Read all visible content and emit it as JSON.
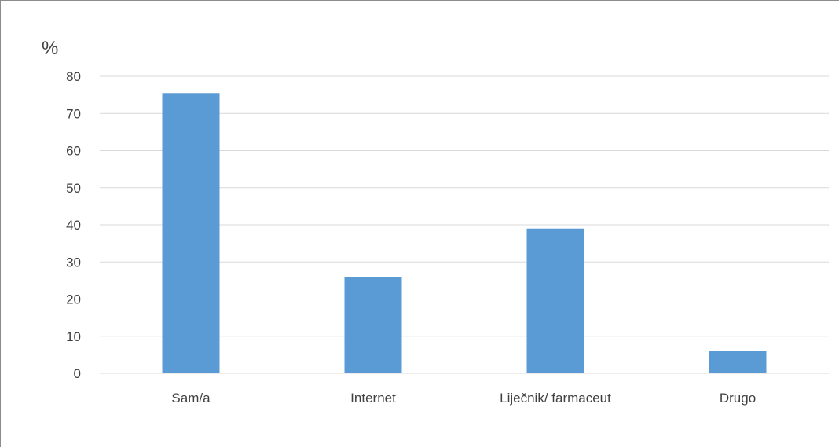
{
  "chart_data": {
    "type": "bar",
    "ylabel": "%",
    "categories": [
      "Sam/a",
      "Internet",
      "Liječnik/ farmaceut",
      "Drugo"
    ],
    "values": [
      75.5,
      26,
      39,
      6
    ],
    "ylim": [
      0,
      80
    ],
    "yticks": [
      0,
      10,
      20,
      30,
      40,
      50,
      60,
      70,
      80
    ],
    "grid": true,
    "legend": "none",
    "colors": {
      "bar": "#5b9bd5",
      "grid": "#d9d9d9",
      "text": "#404040"
    }
  }
}
